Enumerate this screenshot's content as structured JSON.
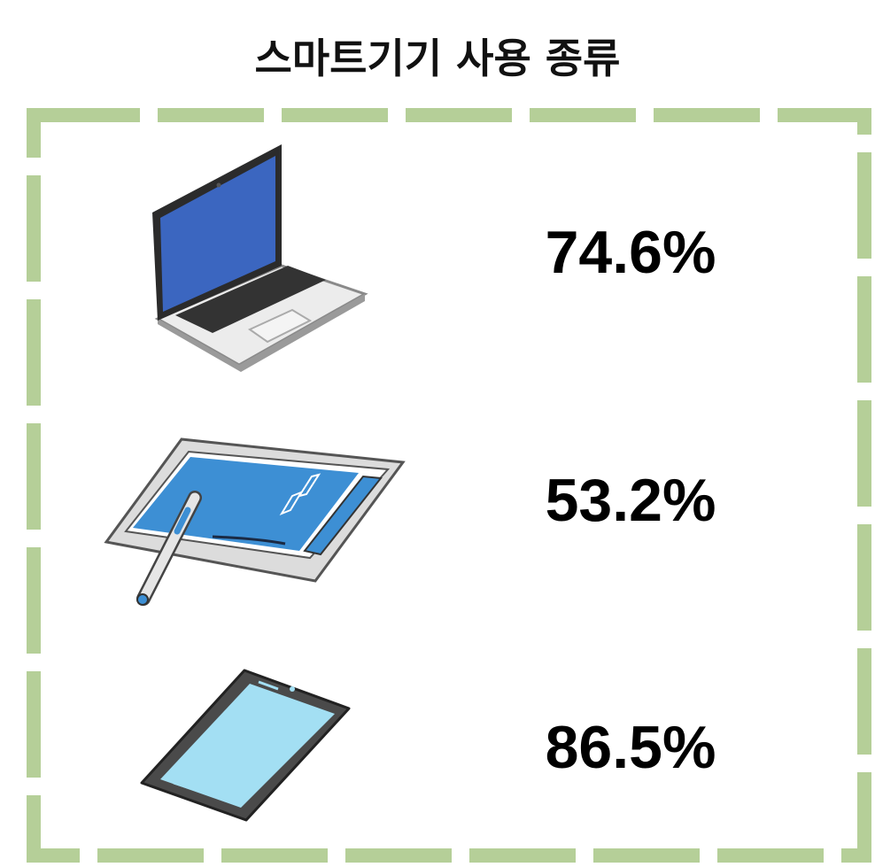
{
  "header": {
    "title": "스마트기기 사용 종류"
  },
  "items": [
    {
      "value": "74.6%"
    },
    {
      "value": "53.2%"
    },
    {
      "value": "86.5%"
    }
  ]
}
